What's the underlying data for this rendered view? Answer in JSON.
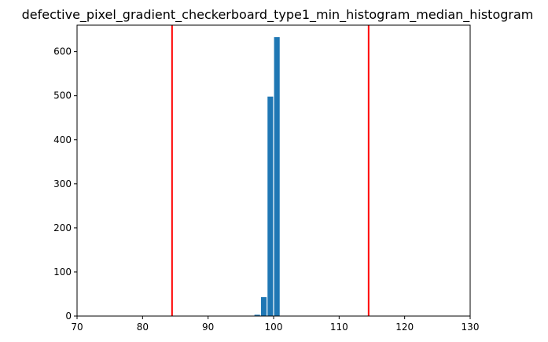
{
  "chart_data": {
    "type": "bar",
    "title": "defective_pixel_gradient_checkerboard_type1_min_histogram_median_histogram",
    "xlabel": "",
    "ylabel": "",
    "xlim": [
      70,
      130
    ],
    "ylim": [
      0,
      660
    ],
    "bar_color": "#1f77b4",
    "bins": [
      {
        "x0": 97.0,
        "x1": 98.0,
        "count": 3
      },
      {
        "x0": 98.0,
        "x1": 99.0,
        "count": 43
      },
      {
        "x0": 99.0,
        "x1": 100.0,
        "count": 498
      },
      {
        "x0": 100.0,
        "x1": 101.0,
        "count": 633
      }
    ],
    "reference_lines": [
      {
        "x": 84.5,
        "color": "#ff0000"
      },
      {
        "x": 114.5,
        "color": "#ff0000"
      }
    ],
    "x_ticks": [
      70,
      80,
      90,
      100,
      110,
      120,
      130
    ],
    "y_ticks": [
      0,
      100,
      200,
      300,
      400,
      500,
      600
    ],
    "grid": false,
    "legend": "none"
  }
}
